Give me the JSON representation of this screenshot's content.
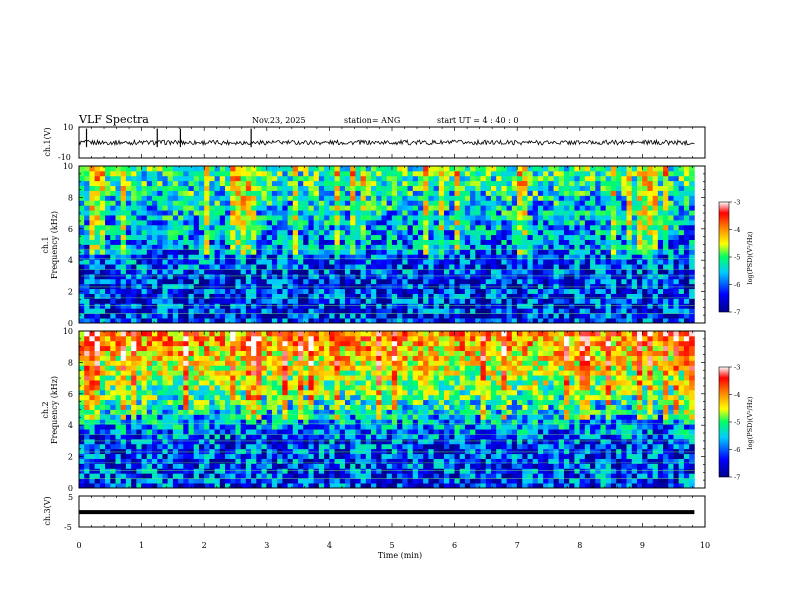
{
  "header": {
    "title": "VLF Spectra",
    "date": "Nov.23, 2025",
    "station": "station= ANG",
    "start": "start  UT =   4 : 40 : 0"
  },
  "chart_data": [
    {
      "type": "line",
      "panel": "ch1-waveform",
      "ylabel": "ch.1(V)",
      "ylim": [
        -10,
        10
      ],
      "yticks": [
        "10",
        "-10"
      ],
      "series": [
        {
          "baseline": 0,
          "noise_amplitude": 1.5,
          "spikes_min": [
            0.12,
            1.25,
            1.62,
            2.75
          ]
        }
      ]
    },
    {
      "type": "heatmap",
      "panel": "ch1-spectrogram",
      "ylabel": "Frequency (kHz)",
      "channel": "ch.1",
      "xlim": [
        0,
        10
      ],
      "ylim": [
        0,
        10
      ],
      "yticks": [
        "0",
        "2",
        "4",
        "6",
        "8",
        "10"
      ],
      "data_end_min": 9.83,
      "intensity_profile_log": {
        "hf": -5.3,
        "lf": -6.4
      },
      "colorbar": {
        "label": "log(PSD)(V²/Hz)",
        "range": [
          -7,
          -3
        ],
        "ticks": [
          "-3",
          "-4",
          "-5",
          "-6",
          "-7"
        ]
      }
    },
    {
      "type": "heatmap",
      "panel": "ch2-spectrogram",
      "ylabel": "Frequency (kHz)",
      "channel": "ch.2",
      "xlim": [
        0,
        10
      ],
      "ylim": [
        0,
        10
      ],
      "yticks": [
        "0",
        "2",
        "4",
        "6",
        "8",
        "10"
      ],
      "data_end_min": 9.83,
      "intensity_profile_log": {
        "hf": -4.1,
        "lf": -6.3
      },
      "colorbar": {
        "label": "log(PSD)(V²/Hz)",
        "range": [
          -7,
          -3
        ],
        "ticks": [
          "-3",
          "-4",
          "-5",
          "-6",
          "-7"
        ]
      }
    },
    {
      "type": "line",
      "panel": "ch3-waveform",
      "ylabel": "ch.3(V)",
      "ylim": [
        -5,
        5
      ],
      "yticks": [
        "5",
        "-5"
      ],
      "series": [
        {
          "baseline": -0.2
        }
      ]
    }
  ],
  "xaxis": {
    "label": "Time (min)",
    "xlim": [
      0,
      10
    ],
    "ticks": [
      "0",
      "1",
      "2",
      "3",
      "4",
      "5",
      "6",
      "7",
      "8",
      "9",
      "10"
    ]
  },
  "colors": {
    "colormap": [
      "#00008b",
      "#0000ff",
      "#00ccff",
      "#00ff66",
      "#ffff00",
      "#ff8800",
      "#ff0000",
      "#ffffff"
    ],
    "hline": "#66ff66"
  }
}
